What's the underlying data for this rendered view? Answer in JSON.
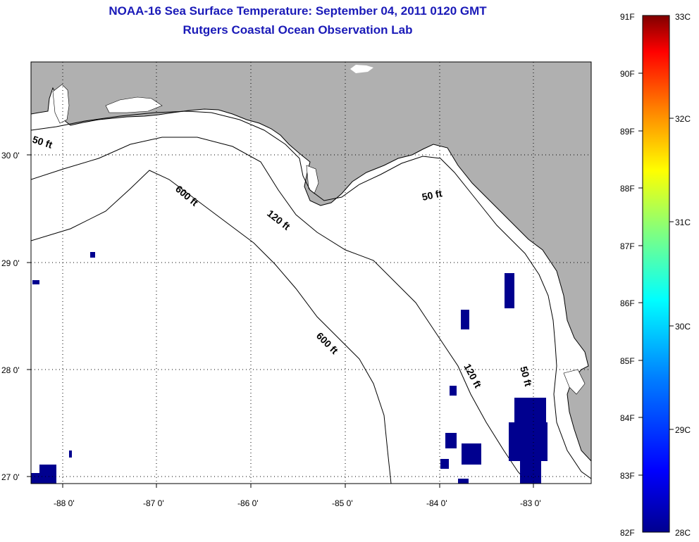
{
  "header": {
    "title": "NOAA-16 Sea Surface Temperature:  September 04, 2011 0120 GMT",
    "subtitle": "Rutgers Coastal Ocean Observation Lab"
  },
  "map": {
    "lon_labels": [
      "-88 0'",
      "-87 0'",
      "-86 0'",
      "-85 0'",
      "-84 0'",
      "-83 0'"
    ],
    "lat_labels": [
      "30 0'",
      "29 0'",
      "28 0'",
      "27 0'"
    ],
    "contour_labels": {
      "c50_west": "50 ft",
      "c50_east": "50 ft",
      "c50_south": "50 ft",
      "c120_north": "120 ft",
      "c120_south": "120 ft",
      "c600_north": "600 ft",
      "c600_south": "600 ft"
    },
    "colors": {
      "land": "#b0b0b0",
      "ocean": "#ffffff",
      "sst_patch": "#00008f"
    }
  },
  "colorbar": {
    "fahrenheit": [
      "91F",
      "90F",
      "89F",
      "88F",
      "87F",
      "86F",
      "85F",
      "84F",
      "83F",
      "82F"
    ],
    "celsius": [
      "33C",
      "32C",
      "31C",
      "30C",
      "29C",
      "28C"
    ],
    "gradient": [
      "#800000",
      "#ff0000",
      "#ff8000",
      "#ffff00",
      "#80ff80",
      "#00ffff",
      "#0080ff",
      "#0000ff",
      "#00008f"
    ]
  }
}
